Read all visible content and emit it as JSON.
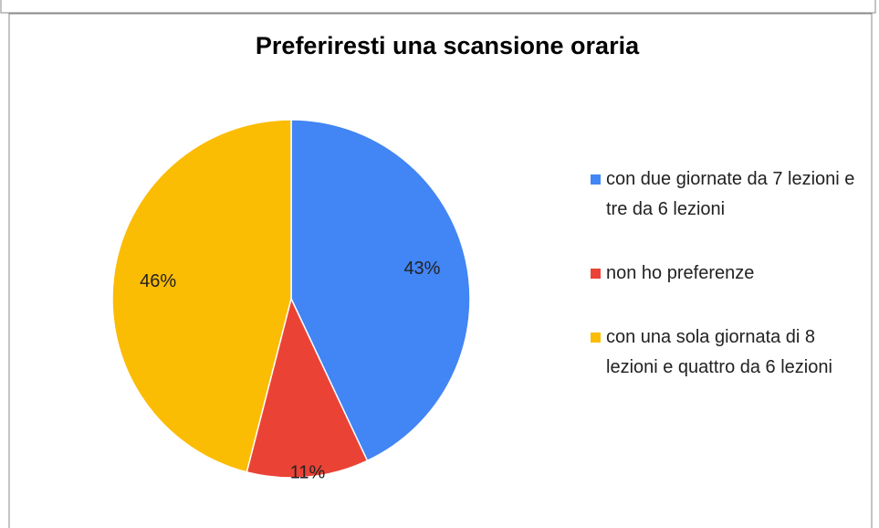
{
  "chart_data": {
    "type": "pie",
    "title": "Preferiresti una scansione oraria",
    "categories": [
      "con due giornate da 7 lezioni e tre da 6 lezioni",
      "non ho preferenze",
      "con una sola giornata di 8 lezioni e quattro da 6 lezioni"
    ],
    "values": [
      43,
      11,
      46
    ],
    "value_labels": [
      "43%",
      "11%",
      "46%"
    ],
    "colors": [
      "#4285f4",
      "#ea4335",
      "#fbbc04"
    ],
    "legend": "right"
  }
}
